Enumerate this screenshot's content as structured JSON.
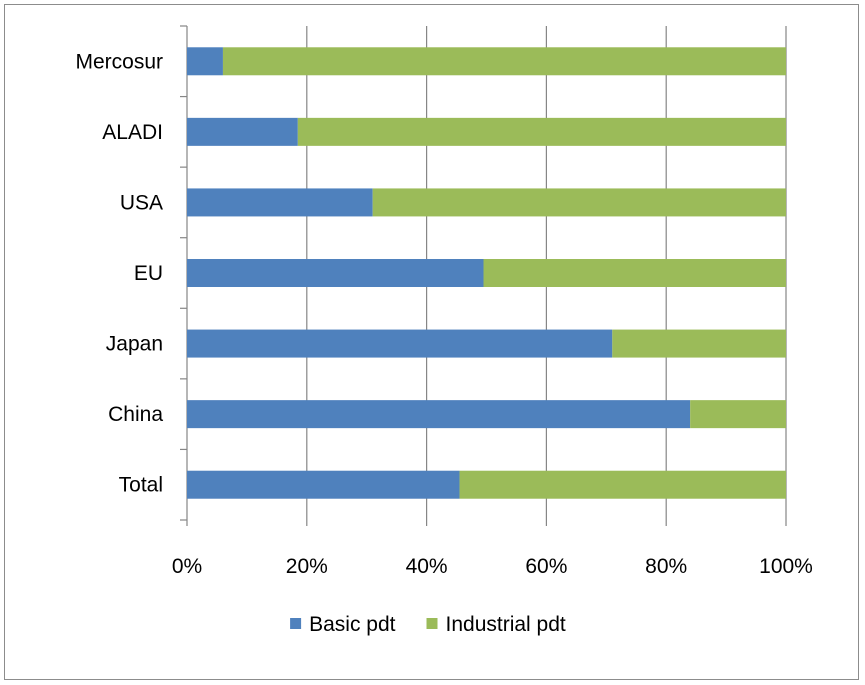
{
  "chart_data": {
    "type": "bar",
    "orientation": "horizontal",
    "stacked": "percent",
    "categories": [
      "Mercosur",
      "ALADI",
      "USA",
      "EU",
      "Japan",
      "China",
      "Total"
    ],
    "series": [
      {
        "name": "Basic pdt",
        "values": [
          6,
          18.5,
          31,
          49.5,
          71,
          84,
          45.5
        ]
      },
      {
        "name": "Industrial pdt",
        "values": [
          94,
          81.5,
          69,
          50.5,
          29,
          16,
          54.5
        ]
      }
    ],
    "x_ticks": [
      "0%",
      "20%",
      "40%",
      "60%",
      "80%",
      "100%"
    ],
    "xlim": [
      0,
      100
    ],
    "grid": "vertical",
    "legend_position": "bottom",
    "colors": {
      "Basic pdt": "#4f81bd",
      "Industrial pdt": "#9bbb59",
      "grid": "#868686",
      "axis": "#868686"
    }
  }
}
